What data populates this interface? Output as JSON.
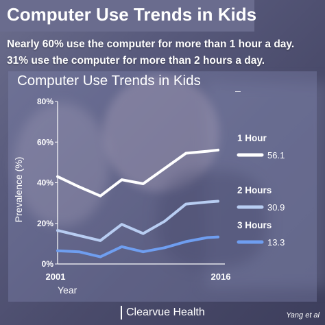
{
  "header": {
    "title": "Computer Use Trends in Kids",
    "subtitle_line1": "Nearly 60% use the computer for more than 1 hour a day.",
    "subtitle_line2": "31% use the computer for more than 2 hours a day."
  },
  "footer": {
    "brand": "Clearvue Health",
    "credit": "Yang et al"
  },
  "colors": {
    "banner": "#6a6c8e",
    "series_1": "#ffffff",
    "series_2": "#b8cdf2",
    "series_3": "#6f9ef0"
  },
  "chart_data": {
    "type": "line",
    "title": "Computer Use Trends in Kids",
    "xlabel": "Year",
    "ylabel": "Prevalence (%)",
    "x_tick_labels": [
      "2001",
      "2016"
    ],
    "y_tick_labels": [
      "0%",
      "20%",
      "40%",
      "60%",
      "80%"
    ],
    "ylim": [
      0,
      80
    ],
    "xlim": [
      2001,
      2016
    ],
    "x": [
      2001,
      2003,
      2005,
      2007,
      2009,
      2011,
      2013,
      2015,
      2016
    ],
    "grid": false,
    "legend_position": "right",
    "series": [
      {
        "name": "1 Hour",
        "end_label": "56.1",
        "color": "#ffffff",
        "values": [
          43,
          38,
          33.5,
          41.5,
          39.5,
          47,
          54.5,
          55.5,
          56.1
        ]
      },
      {
        "name": "2 Hours",
        "end_label": "30.9",
        "color": "#b8cdf2",
        "values": [
          16.5,
          14,
          11.5,
          19.5,
          15,
          21,
          29.5,
          30.5,
          30.9
        ]
      },
      {
        "name": "3 Hours",
        "end_label": "13.3",
        "color": "#6f9ef0",
        "values": [
          6.5,
          6,
          3.5,
          8.5,
          6,
          8,
          11,
          13,
          13.3
        ]
      }
    ]
  }
}
